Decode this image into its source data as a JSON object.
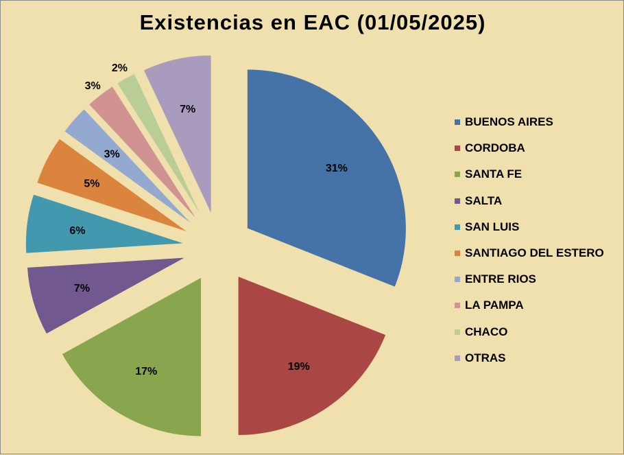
{
  "chart_data": {
    "type": "pie",
    "title": "Existencias en EAC (01/05/2025)",
    "categories": [
      "BUENOS AIRES",
      "CORDOBA",
      "SANTA FE",
      "SALTA",
      "SAN LUIS",
      "SANTIAGO DEL ESTERO",
      "ENTRE RIOS",
      "LA PAMPA",
      "CHACO",
      "OTRAS"
    ],
    "values": [
      31,
      19,
      17,
      7,
      6,
      5,
      3,
      3,
      2,
      7
    ],
    "value_labels": [
      "31%",
      "19%",
      "17%",
      "7%",
      "6%",
      "5%",
      "3%",
      "3%",
      "2%",
      "7%"
    ],
    "colors": [
      "#4572a7",
      "#aa4643",
      "#89a54e",
      "#71588f",
      "#4198af",
      "#db843d",
      "#93a9cf",
      "#d19392",
      "#b9cd96",
      "#a99bbd"
    ],
    "exploded": true,
    "legend_position": "right"
  }
}
